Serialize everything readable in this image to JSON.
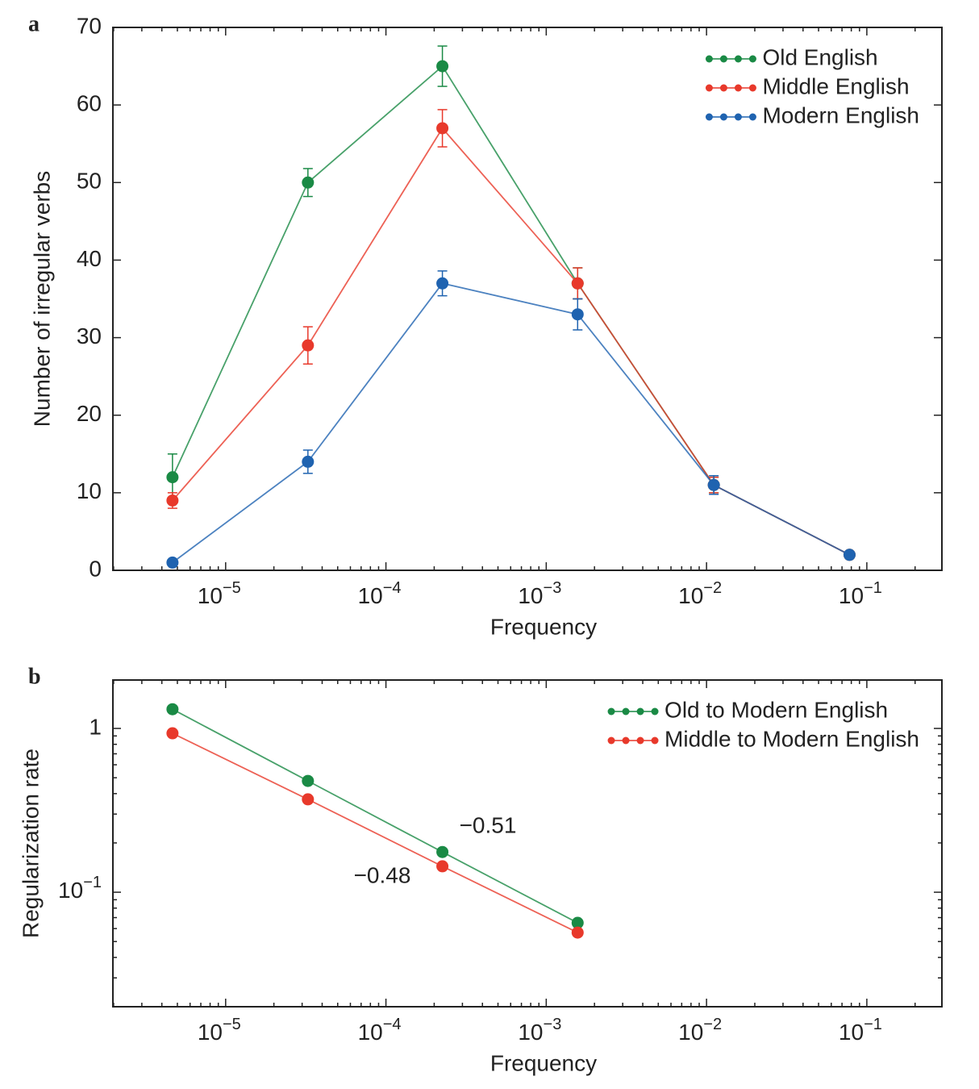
{
  "chart_data": [
    {
      "type": "line",
      "panel_label": "a",
      "x_label": "Frequency",
      "y_label": "Number of irregular verbs",
      "xscale": "log",
      "xlim": [
        1.98e-06,
        0.294
      ],
      "xticks": [
        {
          "value": 1e-05,
          "label": "10−5"
        },
        {
          "value": 0.0001,
          "label": "10−4"
        },
        {
          "value": 0.001,
          "label": "10−3"
        },
        {
          "value": 0.01,
          "label": "10−2"
        },
        {
          "value": 0.1,
          "label": "10−1"
        }
      ],
      "ylim": [
        0,
        70
      ],
      "yticks": [
        0,
        10,
        20,
        30,
        40,
        50,
        60,
        70
      ],
      "legend": "upper right",
      "x": [
        4.66e-06,
        3.26e-05,
        0.000225,
        0.00157,
        0.0111,
        0.078
      ],
      "series": [
        {
          "name": "Old English",
          "color": "#1a8a45",
          "values": [
            12,
            50,
            65,
            37,
            11,
            2
          ],
          "errors": [
            3,
            1.8,
            2.6,
            2,
            1,
            0
          ]
        },
        {
          "name": "Middle English",
          "color": "#e8392b",
          "values": [
            9,
            29,
            57,
            37,
            11,
            2
          ],
          "errors": [
            1,
            2.4,
            2.4,
            2,
            1,
            0
          ]
        },
        {
          "name": "Modern English",
          "color": "#1f63b0",
          "values": [
            1,
            14,
            37,
            33,
            11,
            2
          ],
          "errors": [
            0,
            1.5,
            1.6,
            2,
            1.2,
            0
          ]
        }
      ]
    },
    {
      "type": "line",
      "panel_label": "b",
      "x_label": "Frequency",
      "y_label": "Regularization rate",
      "xscale": "log",
      "yscale": "log",
      "xlim": [
        1.98e-06,
        0.294
      ],
      "xticks": [
        {
          "value": 1e-05,
          "label": "10−5"
        },
        {
          "value": 0.0001,
          "label": "10−4"
        },
        {
          "value": 0.001,
          "label": "10−3"
        },
        {
          "value": 0.01,
          "label": "10−2"
        },
        {
          "value": 0.1,
          "label": "10−1"
        }
      ],
      "ylim": [
        0.02,
        1.975
      ],
      "yticks": [
        {
          "value": 0.1,
          "label": "10−1"
        },
        1
      ],
      "legend": "upper right",
      "x": [
        4.66e-06,
        3.26e-05,
        0.000225,
        0.00157
      ],
      "series": [
        {
          "name": "Old to Modern English",
          "color": "#1a8a45",
          "values": [
            1.31,
            0.478,
            0.176,
            0.065
          ]
        },
        {
          "name": "Middle to Modern English",
          "color": "#e8392b",
          "values": [
            0.934,
            0.369,
            0.144,
            0.0567
          ]
        }
      ],
      "annotations": [
        {
          "text": "−0.51",
          "color": "#1a8a45"
        },
        {
          "text": "−0.48",
          "color": "#e0312f"
        }
      ]
    }
  ]
}
